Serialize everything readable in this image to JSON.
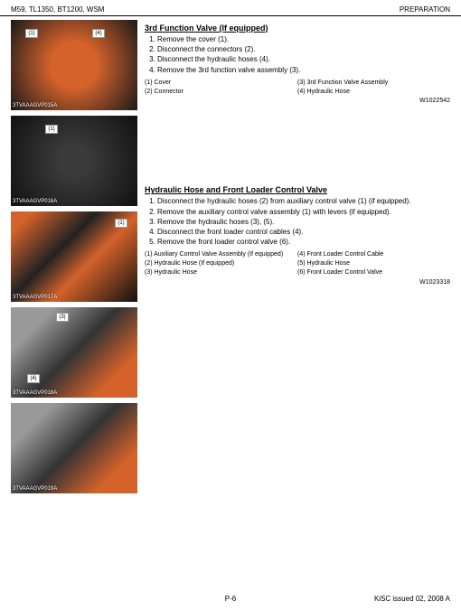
{
  "header": {
    "left": "M59, TL1350, BT1200, WSM",
    "right": "PREPARATION"
  },
  "images": [
    {
      "label": "3TVAAAGVP015A",
      "callouts": [
        {
          "n": "(1)",
          "t": 10,
          "l": 16
        },
        {
          "n": "(4)",
          "t": 10,
          "l": 90
        }
      ],
      "bg": "blob-orange"
    },
    {
      "label": "3TVAAAGVP016A",
      "callouts": [
        {
          "n": "(1)",
          "t": 10,
          "l": 38
        }
      ],
      "bg": "blob-dark"
    },
    {
      "label": "3TVAAAGVP017A",
      "callouts": [
        {
          "n": "(1)",
          "t": 8,
          "l": 115
        }
      ],
      "bg": "blob-mixed"
    },
    {
      "label": "3TVAAAGVP018A",
      "callouts": [
        {
          "n": "(3)",
          "t": 6,
          "l": 50
        },
        {
          "n": "(4)",
          "t": 74,
          "l": 18
        }
      ],
      "bg": "blob-valve"
    },
    {
      "label": "3TVAAAGVP019A",
      "callouts": [],
      "bg": "blob-valve"
    }
  ],
  "section1": {
    "title": "3rd Function Valve (If equipped)",
    "steps": [
      "Remove the cover (1).",
      "Disconnect the connectors (2).",
      "Disconnect the hydraulic hoses (4).",
      "Remove the 3rd function valve assembly (3)."
    ],
    "legendL": [
      "(1) Cover",
      "(2) Connector"
    ],
    "legendR": [
      "(3) 3rd Function Valve Assembly",
      "(4) Hydraulic Hose"
    ],
    "wcode": "W1022542"
  },
  "section2": {
    "title": "Hydraulic Hose and Front Loader Control Valve",
    "steps": [
      "Disconnect the hydraulic hoses (2) from auxiliary control valve (1) (if equipped).",
      "Remove the auxiliary control valve assembly (1) with levers (if equipped).",
      "Remove the hydraulic hoses (3), (5).",
      "Disconnect the front loader control cables (4).",
      "Remove the front loader control valve (6)."
    ],
    "legendL": [
      "(1) Auxiliary Control Valve Assembly (If equipped)",
      "(2) Hydraulic Hose (If equipped)",
      "(3) Hydraulic Hose"
    ],
    "legendR": [
      "(4) Front Loader Control Cable",
      "(5) Hydraulic Hose",
      "(6) Front Loader Control Valve"
    ],
    "wcode": "W1023318"
  },
  "footer": {
    "page": "P-6",
    "right": "KiSC issued 02, 2008 A"
  }
}
